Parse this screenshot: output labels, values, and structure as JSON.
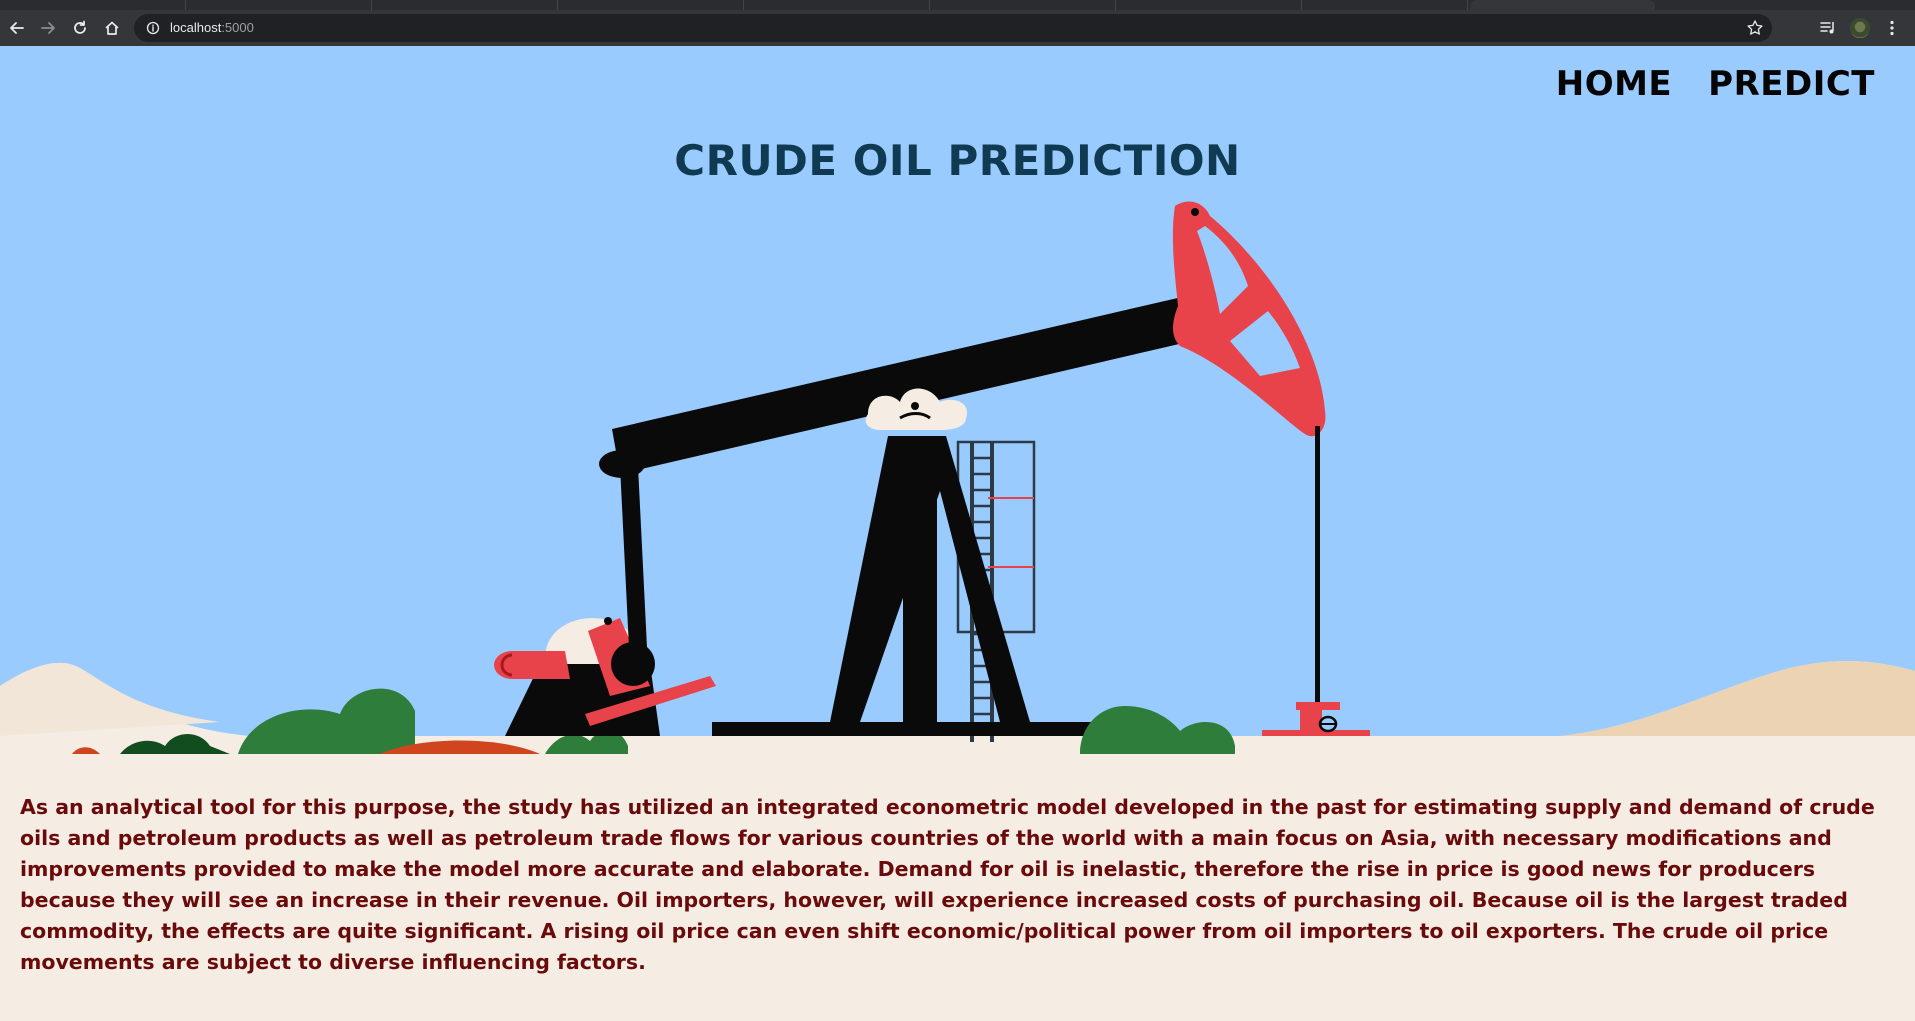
{
  "browser": {
    "url_host": "localhost",
    "url_port": ":5000",
    "icons": [
      "back-arrow-icon",
      "forward-arrow-icon",
      "reload-icon",
      "home-icon",
      "info-icon",
      "star-icon",
      "media-control-icon",
      "profile-avatar",
      "kebab-menu-icon"
    ]
  },
  "nav": {
    "home_label": "HOME",
    "predict_label": "PREDICT"
  },
  "hero": {
    "title": "CRUDE OIL PREDICTION",
    "illustration": "oil-pumpjack-illustration"
  },
  "content": {
    "description": "As an analytical tool for this purpose, the study has utilized an integrated econometric model developed in the past for estimating supply and demand of crude oils and petroleum products as well as petroleum trade flows for various countries of the world with a main focus on Asia, with necessary modifications and improvements provided to make the model more accurate and elaborate. Demand for oil is inelastic, therefore the rise in price is good news for producers because they will see an increase in their revenue. Oil importers, however, will experience increased costs of purchasing oil. Because oil is the largest traded commodity, the effects are quite significant. A rising oil price can even shift economic/political power from oil importers to oil exporters. The crude oil price movements are subject to diverse influencing factors."
  },
  "colors": {
    "sky": "#9acbff",
    "ground": "#f5ede4",
    "title": "#0f3a52",
    "text": "#6a0b0b",
    "pump_red": "#e8434a",
    "pump_black": "#0a0a0a",
    "bush_green": "#2e7d3a"
  }
}
